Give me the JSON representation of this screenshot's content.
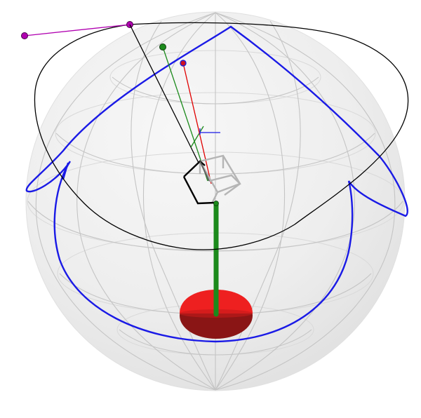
{
  "scene": {
    "type": "3d-sphere-visualization",
    "colors": {
      "background": "#ffffff",
      "sphere_fill": "#e6e6e6",
      "grid": "#c4c4c4",
      "orbit_blue": "#1a1ae6",
      "path_black": "#000000",
      "magenta": "#b000b0",
      "green": "#1b8a1b",
      "red": "#e00000",
      "base_red": "#ee2020",
      "base_dark": "#8a1515",
      "cube_gray": "#b5b5b5"
    }
  }
}
